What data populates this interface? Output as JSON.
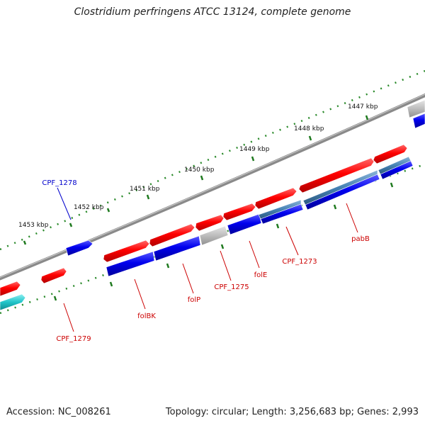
{
  "title": "Clostridium perfringens ATCC 13124, complete genome",
  "footer": {
    "accession": "Accession: NC_008261",
    "summary": "Topology: circular; Length: 3,256,683 bp; Genes: 2,993"
  },
  "ruler": {
    "labels": [
      "1447 kbp",
      "1448 kbp",
      "1449 kbp",
      "1450 kbp",
      "1451 kbp",
      "1452 kbp",
      "1453 kbp"
    ]
  },
  "genes": [
    {
      "name": "CPF_1278",
      "color": "#0000cc"
    },
    {
      "name": "CPF_1279",
      "color": "#cc0000"
    },
    {
      "name": "folBK",
      "color": "#cc0000"
    },
    {
      "name": "folP",
      "color": "#cc0000"
    },
    {
      "name": "CPF_1275",
      "color": "#cc0000"
    },
    {
      "name": "folE",
      "color": "#cc0000"
    },
    {
      "name": "CPF_1273",
      "color": "#cc0000"
    },
    {
      "name": "pabB",
      "color": "#cc0000"
    }
  ],
  "colors": {
    "backbone": "#8a8a8a",
    "forward_feature": "#ff0000",
    "reverse_cds": "#0000ee",
    "grey_feature": "#bbbbbb",
    "steel_feature": "#4682b4",
    "cyan_feature": "#20c4c8",
    "ruler_tick": "#2a8a2a"
  }
}
